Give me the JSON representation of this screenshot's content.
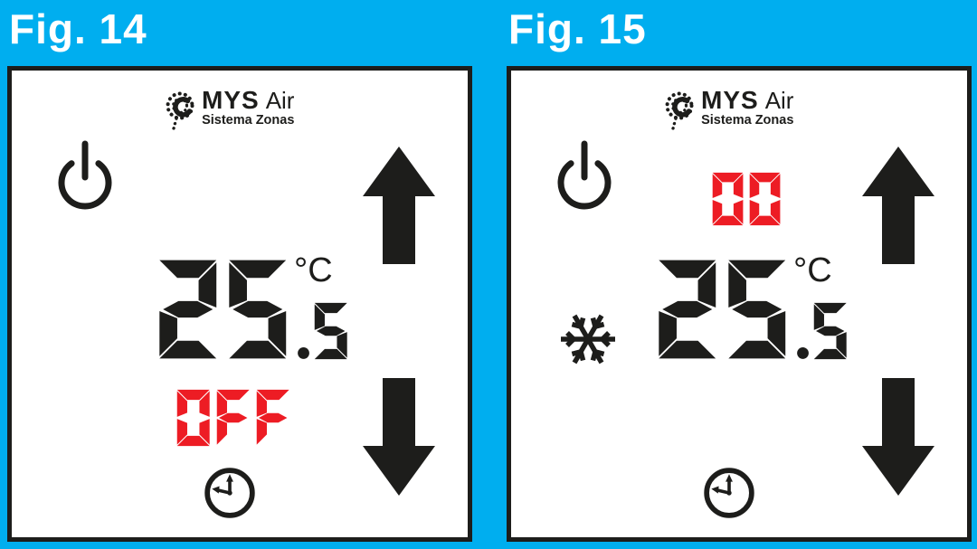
{
  "page": {
    "background": "#00AEEF"
  },
  "colors": {
    "ink": "#1d1d1b",
    "display_red": "#ED1C24",
    "panel_bg": "#ffffff",
    "label_white": "#ffffff"
  },
  "logo": {
    "brand": "MYS",
    "brand_suffix": "Air",
    "subtitle": "Sistema Zonas",
    "emblem": "mys-knot-emblem"
  },
  "icons": {
    "power": "power-icon",
    "up": "arrow-up-icon",
    "down": "arrow-down-icon",
    "clock": "timer-clock-icon",
    "snowflake": "snowflake-cool-mode-icon"
  },
  "figures": [
    {
      "label": "Fig. 14",
      "display": {
        "temp_integer": "25",
        "temp_fraction": ".5",
        "unit": "°C",
        "status": "OFF"
      }
    },
    {
      "label": "Fig. 15",
      "display": {
        "temp_integer": "25",
        "temp_fraction": ".5",
        "unit": "°C",
        "status": "00",
        "mode": "cool"
      }
    }
  ]
}
